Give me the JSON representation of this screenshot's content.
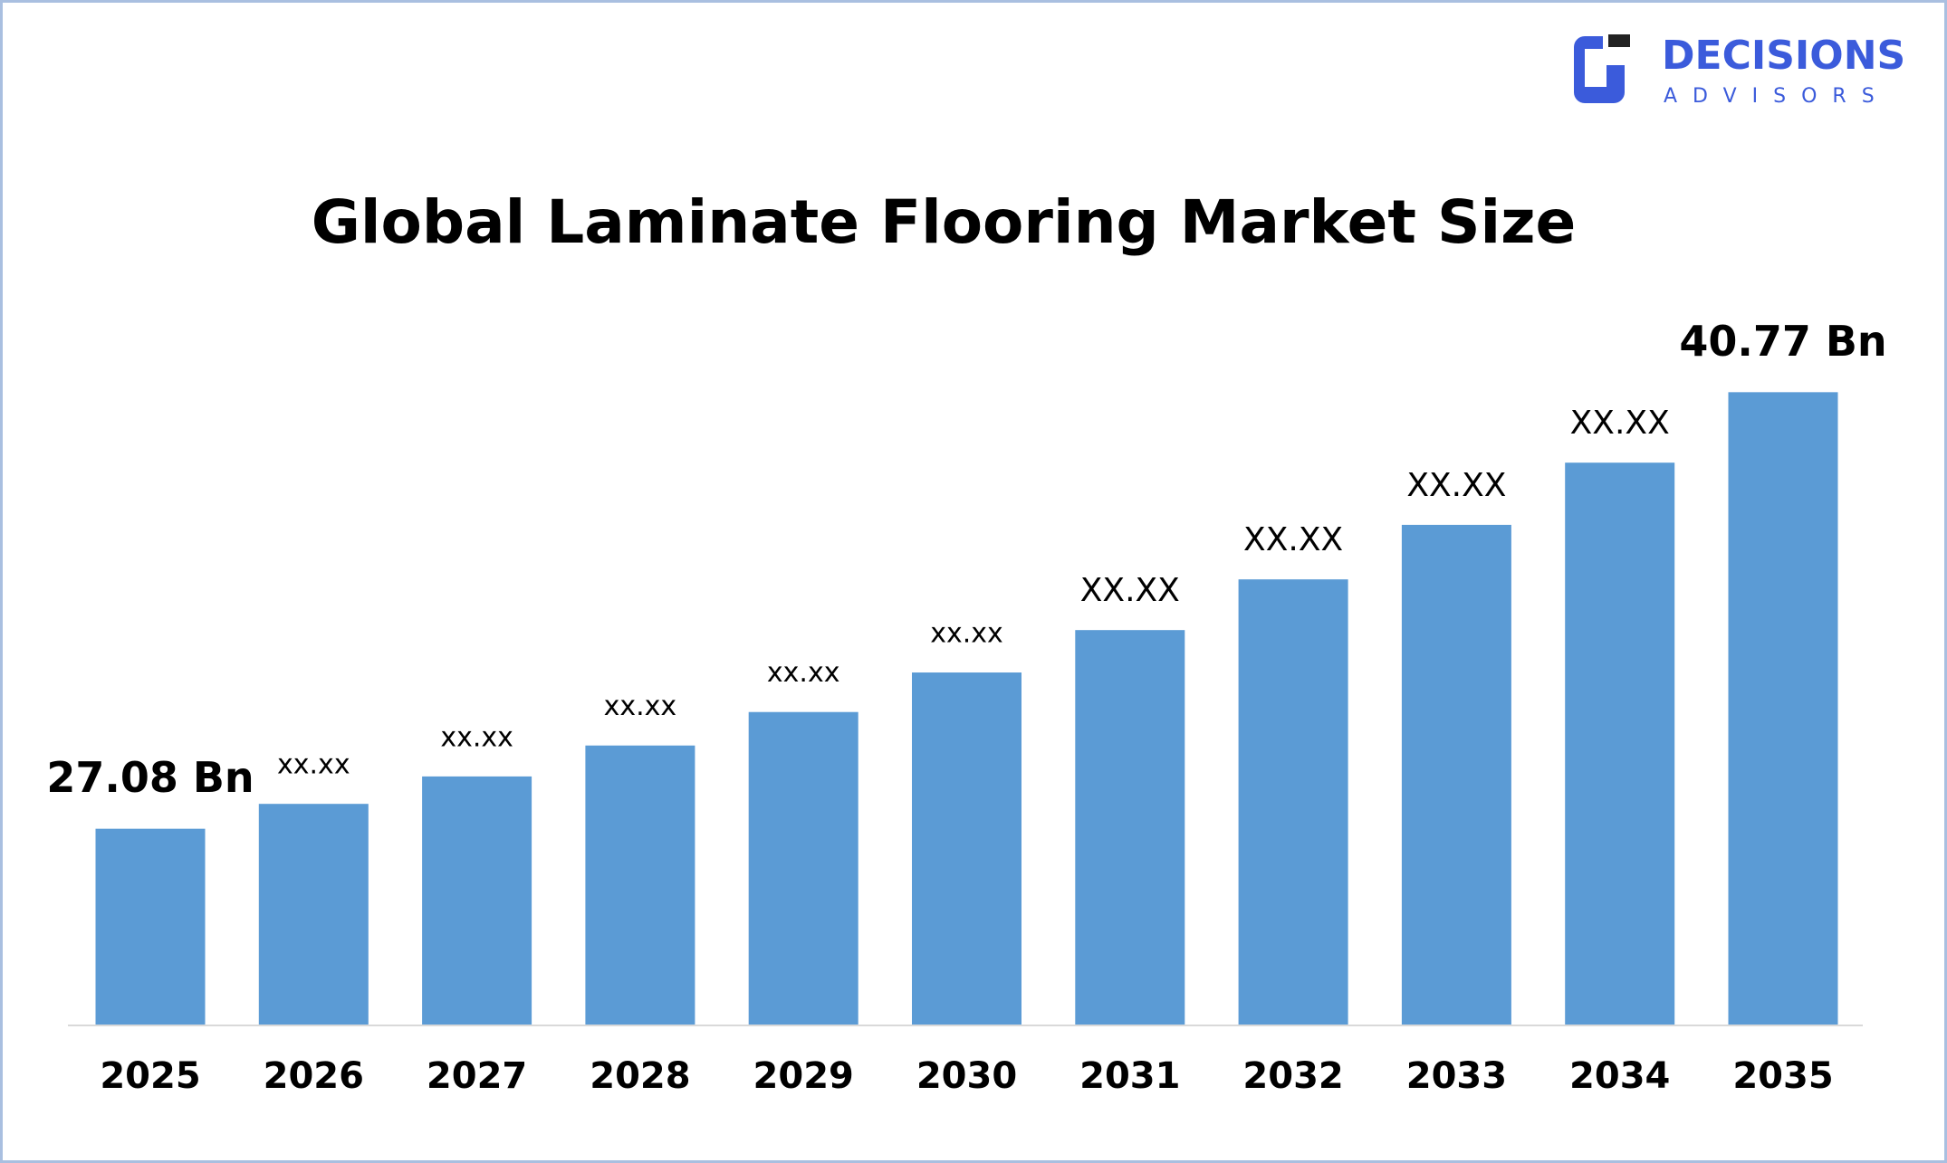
{
  "logo": {
    "name": "DECISIONS",
    "tagline": "ADVISORS"
  },
  "chart_data": {
    "type": "bar",
    "title": "Global Laminate Flooring Market Size",
    "categories": [
      "2025",
      "2026",
      "2027",
      "2028",
      "2029",
      "2030",
      "2031",
      "2032",
      "2033",
      "2034",
      "2035"
    ],
    "values": [
      27.08,
      27.86,
      28.72,
      29.69,
      30.74,
      31.98,
      33.31,
      34.9,
      36.61,
      38.56,
      40.77
    ],
    "value_labels": [
      "27.08 Bn",
      "xx.xx",
      "xx.xx",
      "xx.xx",
      "xx.xx",
      "xx.xx",
      "XX.XX",
      "XX.XX",
      "XX.XX",
      "XX.XX",
      "40.77 Bn"
    ],
    "color": "#5b9bd5",
    "ylim": [
      20.94,
      42
    ],
    "grid": false
  }
}
